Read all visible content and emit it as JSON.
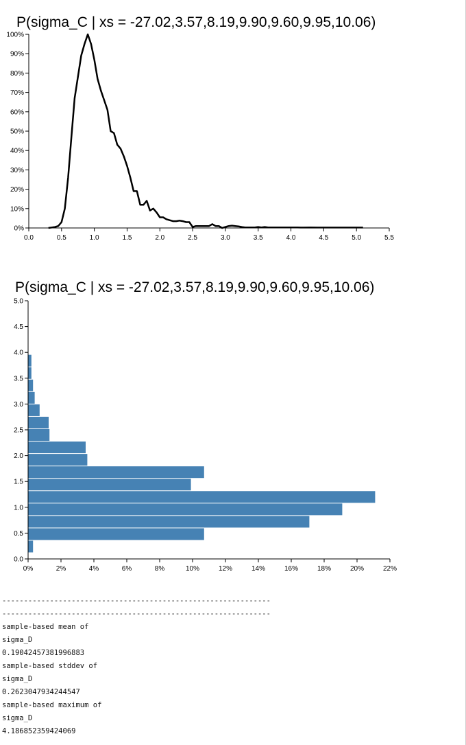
{
  "chart_data": [
    {
      "type": "line",
      "title": "P(sigma_C | xs = -27.02,3.57,8.19,9.90,9.60,9.95,10.06)",
      "xlim": [
        0,
        5.5
      ],
      "ylim": [
        0,
        100
      ],
      "x_ticks": [
        "0.0",
        "0.5",
        "1.0",
        "1.5",
        "2.0",
        "2.5",
        "3.0",
        "3.5",
        "4.0",
        "4.5",
        "5.0",
        "5.5"
      ],
      "y_ticks": [
        "0%",
        "10%",
        "20%",
        "30%",
        "40%",
        "50%",
        "60%",
        "70%",
        "80%",
        "90%",
        "100%"
      ],
      "grid": false,
      "color": "#000000",
      "x": [
        0.3,
        0.4,
        0.45,
        0.5,
        0.55,
        0.6,
        0.65,
        0.7,
        0.75,
        0.8,
        0.85,
        0.9,
        0.95,
        1.0,
        1.05,
        1.1,
        1.15,
        1.2,
        1.25,
        1.3,
        1.35,
        1.4,
        1.45,
        1.5,
        1.55,
        1.6,
        1.65,
        1.7,
        1.75,
        1.8,
        1.85,
        1.9,
        1.95,
        2.0,
        2.05,
        2.1,
        2.15,
        2.2,
        2.25,
        2.3,
        2.35,
        2.4,
        2.45,
        2.5,
        2.55,
        2.6,
        2.65,
        2.7,
        2.75,
        2.8,
        2.85,
        2.9,
        2.95,
        3.0,
        3.05,
        3.1,
        3.15,
        3.2,
        3.25,
        3.3,
        3.35,
        3.4,
        3.45,
        3.5,
        3.55,
        3.6,
        3.65,
        3.7,
        3.75,
        3.8,
        3.85,
        3.9,
        3.95,
        4.0,
        4.05,
        4.1,
        4.15,
        4.2,
        4.3,
        4.4,
        4.5,
        4.6,
        4.7,
        4.8,
        4.9,
        5.0,
        5.1
      ],
      "y": [
        0,
        0.5,
        1,
        3,
        10,
        26,
        47,
        67,
        78,
        89,
        95,
        100,
        95,
        87,
        77,
        71,
        66,
        61,
        50,
        49,
        43,
        41,
        37,
        32,
        26,
        19,
        19,
        12,
        12,
        14,
        9,
        10,
        8,
        5.5,
        5.5,
        4.5,
        4,
        3.5,
        3.5,
        3.8,
        3.5,
        3,
        3,
        0.5,
        1,
        1,
        1,
        1,
        1,
        2,
        1,
        1,
        0,
        0.5,
        1,
        1.2,
        1,
        0.8,
        0.5,
        0.3,
        0.3,
        0.3,
        0.3,
        0.5,
        0.3,
        0.5,
        0.3,
        0.3,
        0.3,
        0.3,
        0.3,
        0.3,
        0.3,
        0.3,
        0.3,
        0.3,
        0.2,
        0.2,
        0.3,
        0.2,
        0.2,
        0.2,
        0.2,
        0.2,
        0.2,
        0.2,
        0.2
      ]
    },
    {
      "type": "bar",
      "orientation": "horizontal",
      "title": "P(sigma_C | xs = -27.02,3.57,8.19,9.90,9.60,9.95,10.06)",
      "xlim": [
        0,
        22
      ],
      "ylim": [
        0,
        5.0
      ],
      "x_ticks": [
        "0%",
        "2%",
        "4%",
        "6%",
        "8%",
        "10%",
        "12%",
        "14%",
        "16%",
        "18%",
        "20%",
        "22%"
      ],
      "y_ticks": [
        "0.0",
        "0.5",
        "1.0",
        "1.5",
        "2.0",
        "2.5",
        "3.0",
        "3.5",
        "4.0",
        "4.5",
        "5.0"
      ],
      "grid": false,
      "color": "#4682b4",
      "bins": [
        {
          "y0": 0.12,
          "y1": 0.36,
          "value": 0.3
        },
        {
          "y0": 0.36,
          "y1": 0.6,
          "value": 10.7
        },
        {
          "y0": 0.6,
          "y1": 0.84,
          "value": 17.1
        },
        {
          "y0": 0.84,
          "y1": 1.08,
          "value": 19.1
        },
        {
          "y0": 1.08,
          "y1": 1.32,
          "value": 21.1
        },
        {
          "y0": 1.32,
          "y1": 1.56,
          "value": 9.9
        },
        {
          "y0": 1.56,
          "y1": 1.8,
          "value": 10.7
        },
        {
          "y0": 1.8,
          "y1": 2.04,
          "value": 3.6
        },
        {
          "y0": 2.04,
          "y1": 2.28,
          "value": 3.5
        },
        {
          "y0": 2.28,
          "y1": 2.52,
          "value": 1.3
        },
        {
          "y0": 2.52,
          "y1": 2.76,
          "value": 1.25
        },
        {
          "y0": 2.76,
          "y1": 3.0,
          "value": 0.7
        },
        {
          "y0": 3.0,
          "y1": 3.24,
          "value": 0.4
        },
        {
          "y0": 3.24,
          "y1": 3.48,
          "value": 0.3
        },
        {
          "y0": 3.48,
          "y1": 3.72,
          "value": 0.2
        },
        {
          "y0": 3.72,
          "y1": 3.96,
          "value": 0.2
        }
      ]
    }
  ],
  "output": {
    "separator1": "--------------------------------------------------------------",
    "separator2": "--------------------------------------------------------------",
    "mean_label": "sample-based mean of",
    "mean_var": "sigma_D",
    "mean_value": "0.19042457381996883",
    "stddev_label": "sample-based stddev of",
    "stddev_var": "sigma_D",
    "stddev_value": "0.2623047934244547",
    "max_label": "sample-based maximum of",
    "max_var": "sigma_D",
    "max_value": "4.186852359424069"
  }
}
